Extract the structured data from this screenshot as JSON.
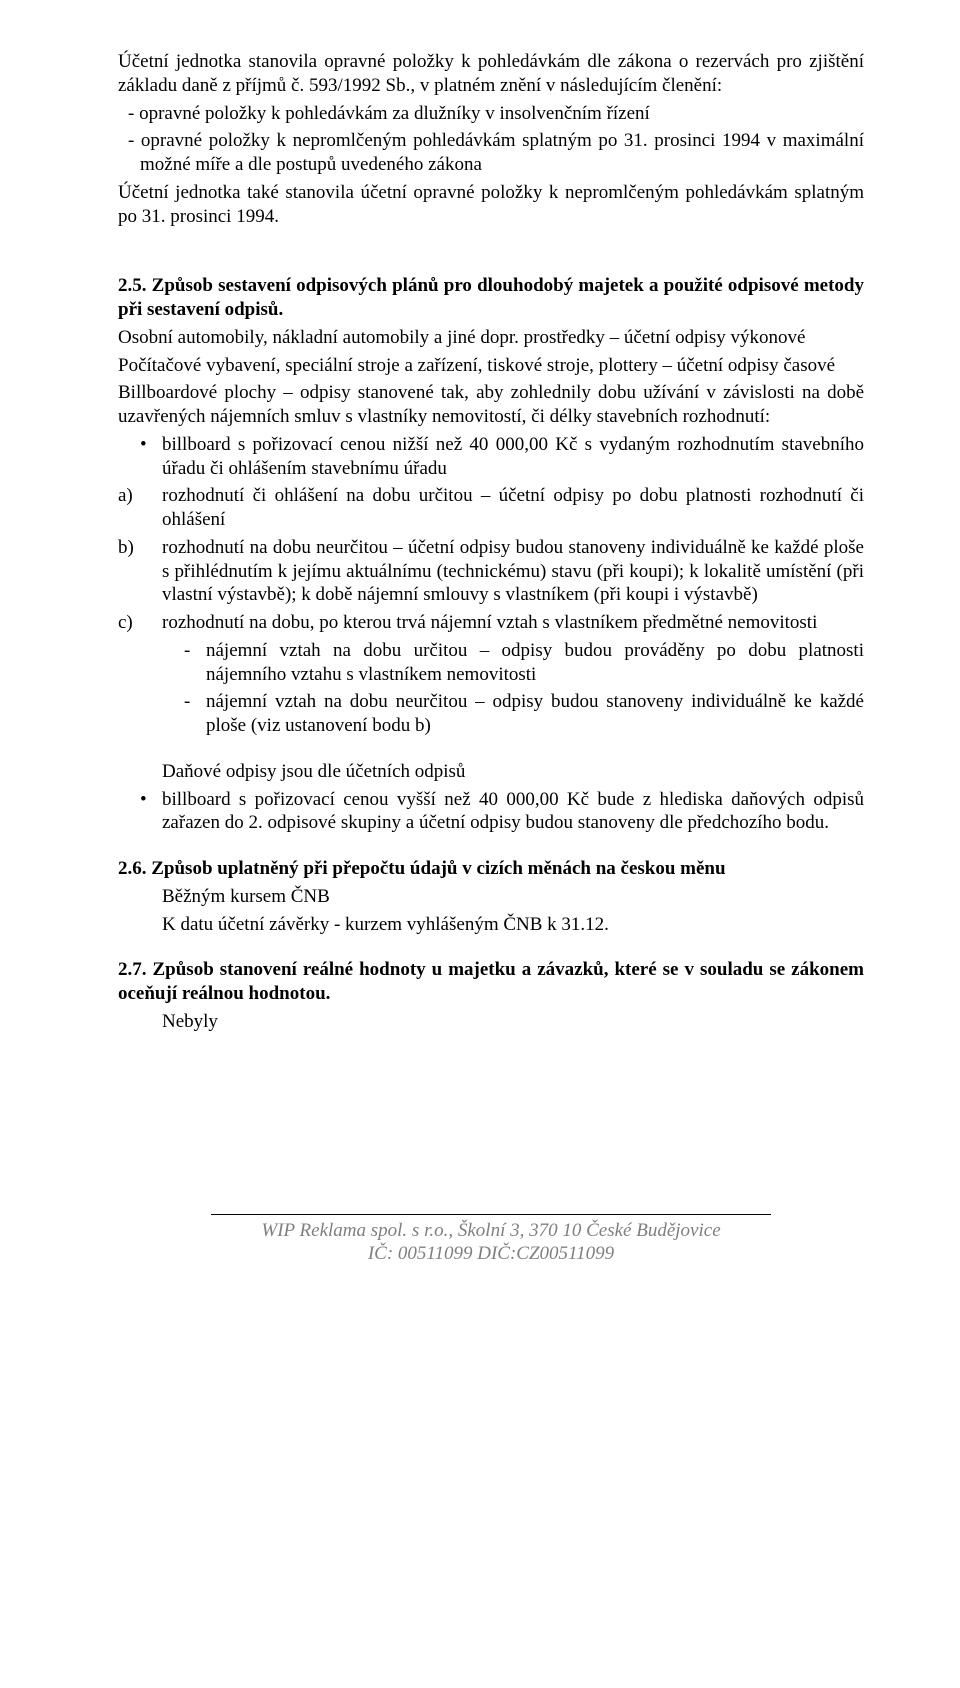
{
  "p1": "Účetní jednotka stanovila opravné položky k pohledávkám dle zákona  o rezervách pro zjištění základu daně z příjmů č. 593/1992 Sb., v platném znění v následujícím členění:",
  "p2": "-  opravné položky k pohledávkám za dlužníky v insolvenčním řízení",
  "p3": "-  opravné položky k nepromlčeným pohledávkám splatným po 31. prosinci 1994 v maximální možné míře  a dle postupů uvedeného zákona",
  "p4": "Účetní jednotka také stanovila účetní opravné položky k nepromlčeným pohledávkám splatným po 31. prosinci 1994.",
  "s25_title": "2.5. Způsob sestavení odpisových plánů pro dlouhodobý majetek a použité odpisové metody při sestavení odpisů.",
  "s25_l1": "Osobní automobily, nákladní automobily a jiné dopr. prostředky – účetní odpisy výkonové",
  "s25_l2": "Počítačové vybavení, speciální stroje a zařízení, tiskové stroje, plottery – účetní odpisy časové",
  "s25_l3": "Billboardové plochy – odpisy stanovené tak, aby zohlednily dobu užívání v závislosti na době uzavřených nájemních smluv s vlastníky nemovitostí, či délky stavebních rozhodnutí:",
  "s25_b1": "billboard s pořizovací cenou nižší než 40 000,00 Kč s vydaným rozhodnutím stavebního úřadu či ohlášením stavebnímu úřadu",
  "s25_a": "rozhodnutí či ohlášení na dobu určitou – účetní odpisy po dobu platnosti rozhodnutí či ohlášení",
  "s25_b": "rozhodnutí na dobu neurčitou – účetní odpisy budou stanoveny individuálně ke každé ploše s přihlédnutím k jejímu aktuálnímu (technickému) stavu (při koupi); k lokalitě umístění (při vlastní výstavbě);  k době nájemní smlouvy s vlastníkem (při koupi i výstavbě)",
  "s25_c": "rozhodnutí na dobu, po kterou trvá nájemní vztah s vlastníkem předmětné nemovitosti",
  "s25_c1": "nájemní vztah na dobu určitou – odpisy budou prováděny po dobu platnosti nájemního vztahu s vlastníkem nemovitosti",
  "s25_c2": "nájemní vztah na dobu neurčitou – odpisy budou stanoveny individuálně ke každé ploše (viz  ustanovení bodu b)",
  "s25_d": "Daňové odpisy jsou dle účetních odpisů",
  "s25_b2": "billboard s pořizovací cenou vyšší než 40 000,00 Kč bude z hlediska daňových odpisů zařazen do 2. odpisové skupiny a účetní odpisy budou stanoveny dle předchozího bodu.",
  "s26_title": "2.6. Způsob uplatněný při přepočtu údajů v cizích měnách na českou měnu",
  "s26_l1": "Běžným kursem ČNB",
  "s26_l2": "K datu účetní závěrky - kurzem vyhlášeným ČNB k 31.12.",
  "s27_title": "2.7. Způsob stanovení reálné hodnoty u majetku a závazků, které se v souladu se zákonem oceňují reálnou hodnotou.",
  "s27_l1": "Nebyly",
  "footer1": "WIP Reklama spol. s r.o., Školní 3, 370 10  České Budějovice",
  "footer2": "IČ: 00511099   DIČ:CZ00511099",
  "marker_a": "a)",
  "marker_b": "b)",
  "marker_c": "c)"
}
